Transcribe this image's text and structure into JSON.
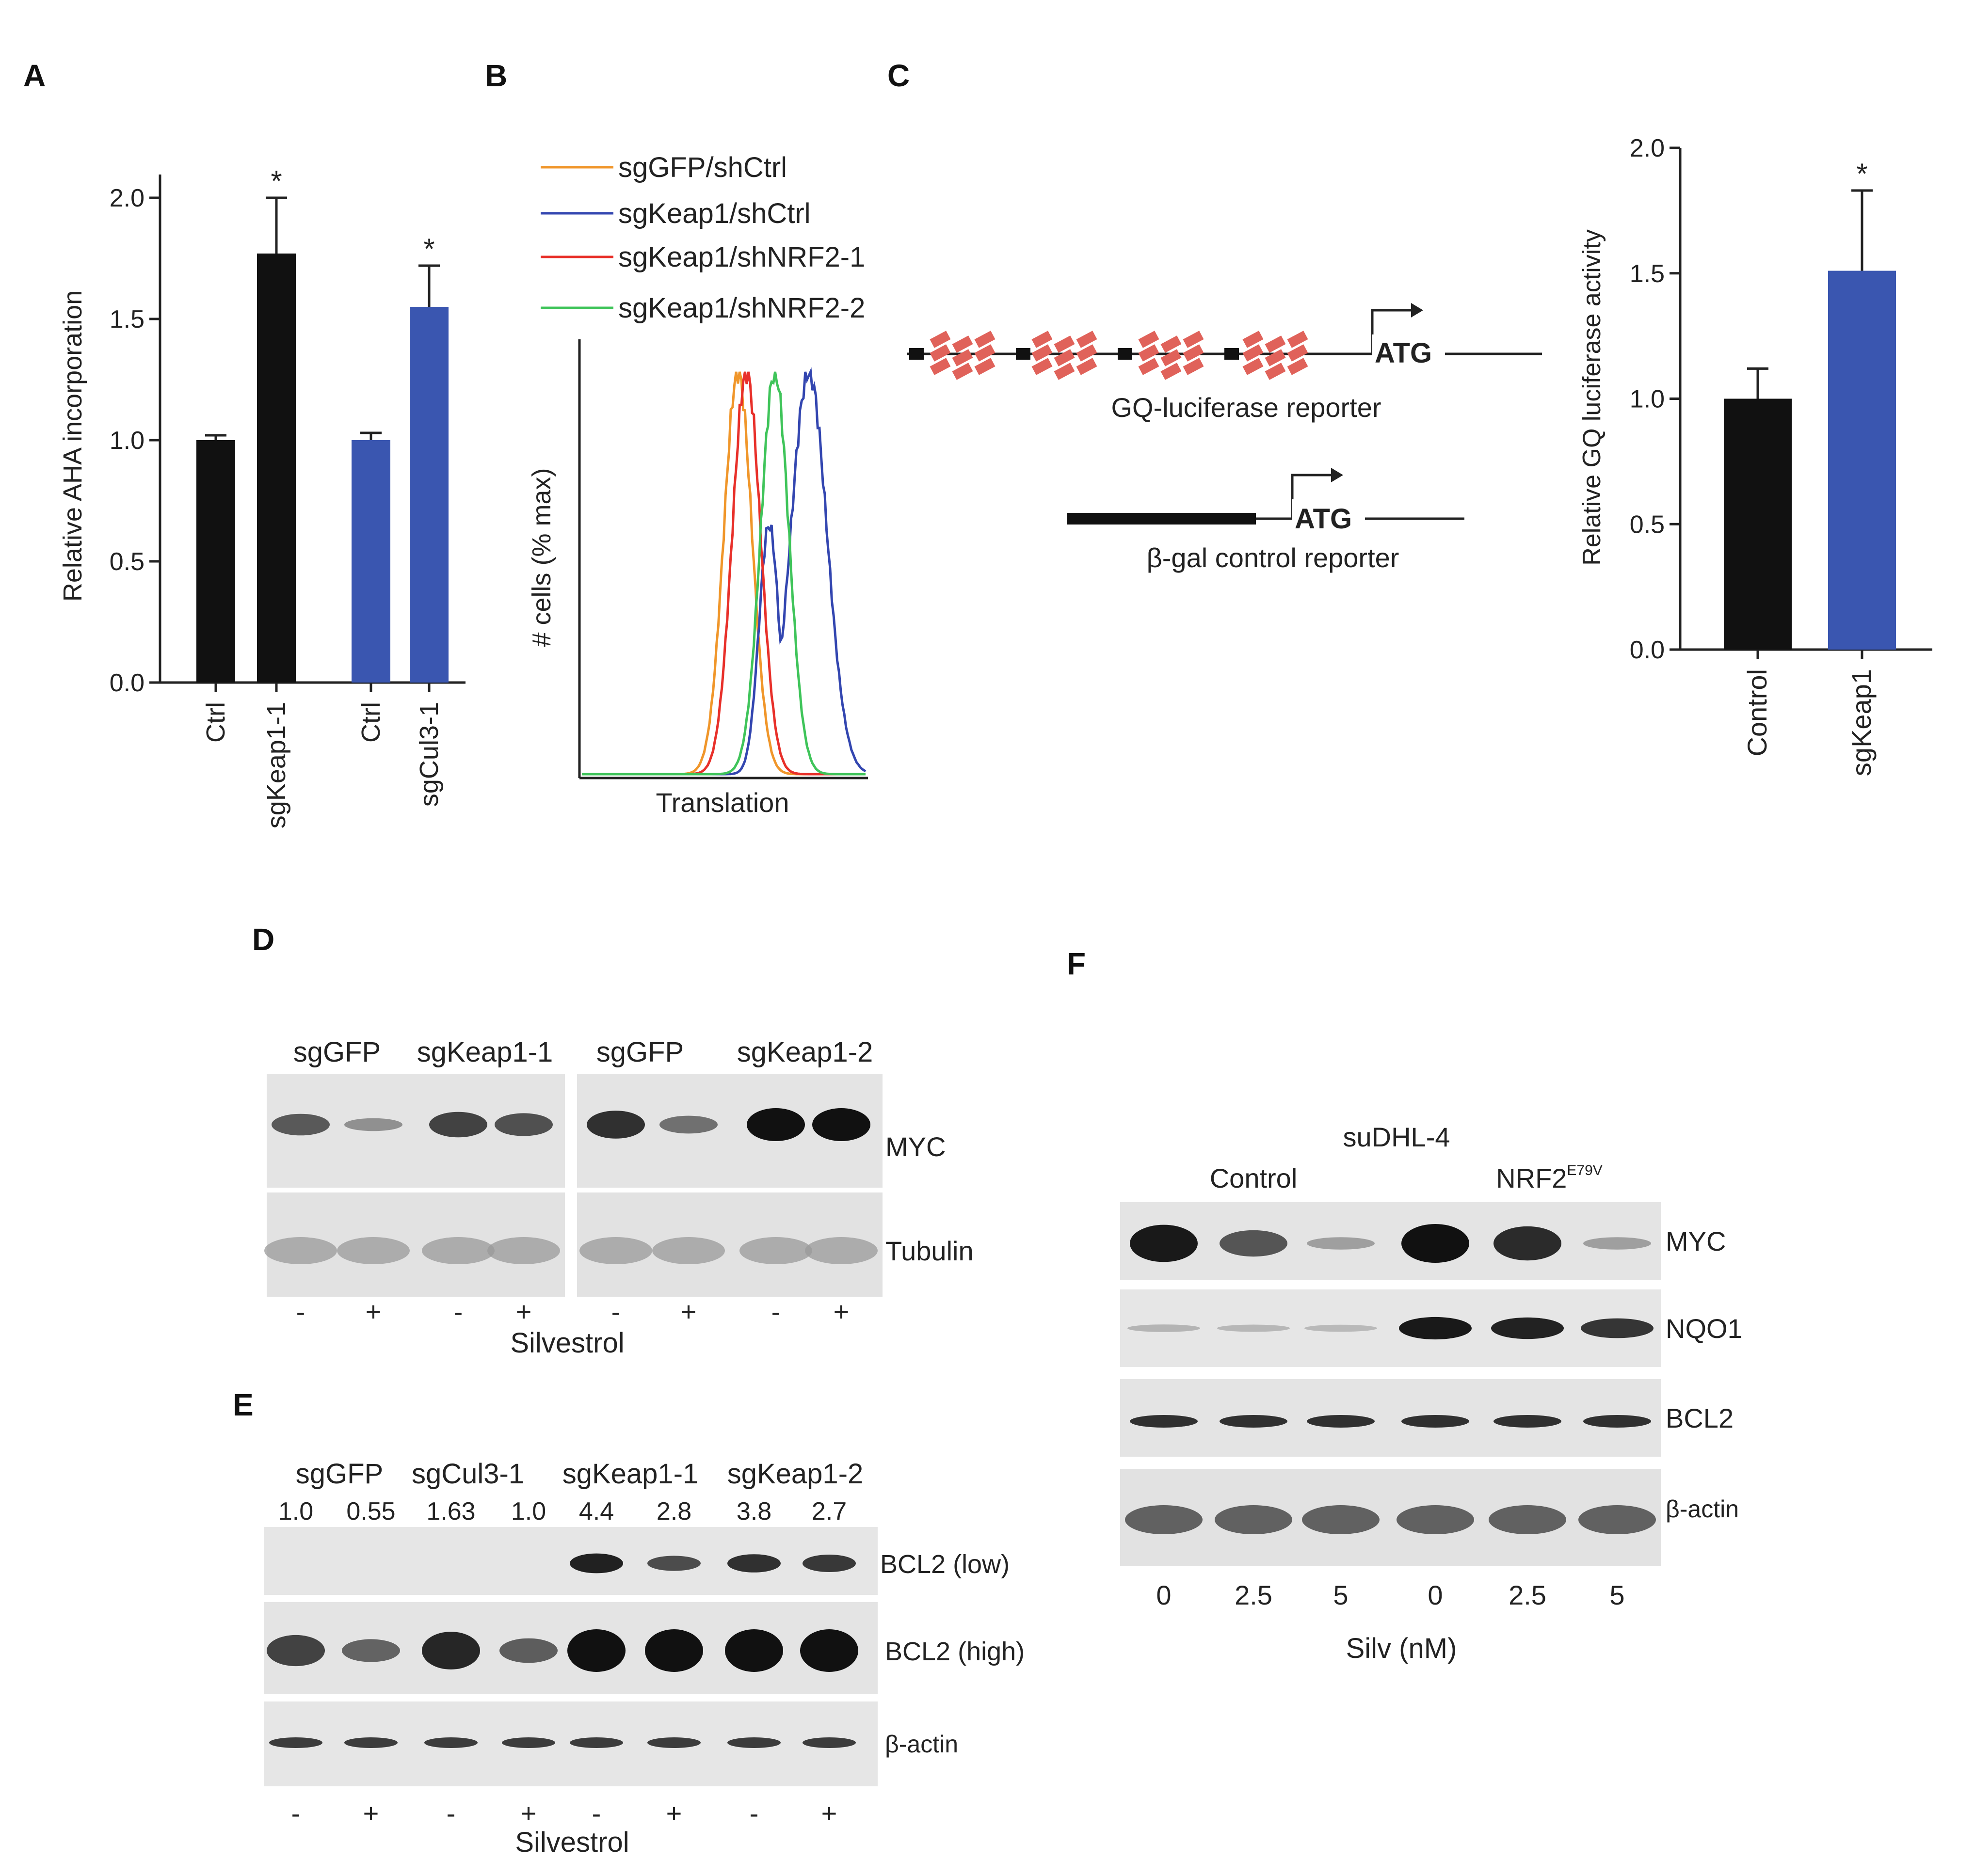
{
  "panels": {
    "A": "A",
    "B": "B",
    "C": "C",
    "D": "D",
    "E": "E",
    "F": "F"
  },
  "chart_data": [
    {
      "type": "bar",
      "panel": "A",
      "categories": [
        "Ctrl",
        "sgKeap1-1",
        "Ctrl",
        "sgCul3-1"
      ],
      "values": [
        1.0,
        1.77,
        1.0,
        1.55
      ],
      "errors": [
        0.02,
        0.23,
        0.03,
        0.17
      ],
      "significance": [
        "",
        "*",
        "",
        "*"
      ],
      "bar_colors": [
        "#111111",
        "#111111",
        "#3a56b0",
        "#3a56b0"
      ],
      "ylabel": "Relative AHA incorporation",
      "ylim": [
        0,
        2.0
      ],
      "yticks": [
        "0.0",
        "0.5",
        "1.0",
        "1.5",
        "2.0"
      ]
    },
    {
      "type": "line",
      "panel": "B",
      "xlabel": "Translation",
      "ylabel": "# cells (% max)",
      "legend": [
        {
          "name": "sgGFP/shCtrl",
          "color": "#f0962a"
        },
        {
          "name": "sgKeap1/shCtrl",
          "color": "#3346b0"
        },
        {
          "name": "sgKeap1/shNRF2-1",
          "color": "#e8302a"
        },
        {
          "name": "sgKeap1/shNRF2-2",
          "color": "#3fc45a"
        }
      ],
      "series": [
        {
          "name": "sgGFP/shCtrl",
          "color": "#f0962a",
          "peak_x": 0.55
        },
        {
          "name": "sgKeap1/shCtrl",
          "color": "#3346b0",
          "peak_x": 0.8
        },
        {
          "name": "sgKeap1/shNRF2-1",
          "color": "#e8302a",
          "peak_x": 0.58
        },
        {
          "name": "sgKeap1/shNRF2-2",
          "color": "#3fc45a",
          "peak_x": 0.68
        }
      ]
    },
    {
      "type": "bar",
      "panel": "C",
      "categories": [
        "Control",
        "sgKeap1"
      ],
      "values": [
        1.0,
        1.51
      ],
      "errors": [
        0.12,
        0.32
      ],
      "significance": [
        "",
        "*"
      ],
      "bar_colors": [
        "#111111",
        "#3a56b0"
      ],
      "ylabel": "Relative GQ luciferase activity",
      "ylim": [
        0,
        2.0
      ],
      "yticks": [
        "0.0",
        "0.5",
        "1.0",
        "1.5",
        "2.0"
      ]
    }
  ],
  "diagram_c": {
    "gq_label": "GQ-luciferase reporter",
    "gal_label": "β-gal control reporter",
    "atg": "ATG",
    "quad_color": "#e0625a"
  },
  "blot_d": {
    "groups": [
      "sgGFP",
      "sgKeap1-1",
      "sgGFP",
      "sgKeap1-2"
    ],
    "rows": [
      "MYC",
      "Tubulin"
    ],
    "treatment_signs": [
      "-",
      "+",
      "-",
      "+",
      "-",
      "+",
      "-",
      "+"
    ],
    "treatment_label": "Silvestrol",
    "myc_intensity": [
      0.55,
      0.2,
      0.7,
      0.6,
      0.8,
      0.4,
      1.0,
      1.0
    ]
  },
  "blot_e": {
    "groups": [
      "sgGFP",
      "sgCul3-1",
      "sgKeap1-1",
      "sgKeap1-2"
    ],
    "ratios": [
      "1.0",
      "0.55",
      "1.63",
      "1.0",
      "4.4",
      "2.8",
      "3.8",
      "2.7"
    ],
    "rows": [
      "BCL2 (low)",
      "BCL2 (high)",
      "β-actin"
    ],
    "treatment_signs": [
      "-",
      "+",
      "-",
      "+",
      "-",
      "+",
      "-",
      "+"
    ],
    "treatment_label": "Silvestrol",
    "bcl2_low_intensity": [
      0,
      0,
      0,
      0,
      0.9,
      0.6,
      0.8,
      0.75
    ],
    "bcl2_high_intensity": [
      0.65,
      0.4,
      0.85,
      0.45,
      1.0,
      1.0,
      1.0,
      1.0
    ]
  },
  "blot_f": {
    "cell_line": "suDHL-4",
    "cell_line_color": "#2a3aa0",
    "groups": [
      "Control",
      "NRF2"
    ],
    "nrf2_superscript": "E79V",
    "rows": [
      "MYC",
      "NQO1",
      "BCL2",
      "β-actin"
    ],
    "doses": [
      "0",
      "2.5",
      "5",
      "0",
      "2.5",
      "5"
    ],
    "dose_label": "Silv (nM)",
    "myc_intensity": [
      0.95,
      0.6,
      0.15,
      1.0,
      0.85,
      0.15
    ],
    "nqo1_intensity": [
      0.1,
      0.08,
      0.07,
      0.95,
      0.9,
      0.8
    ]
  }
}
